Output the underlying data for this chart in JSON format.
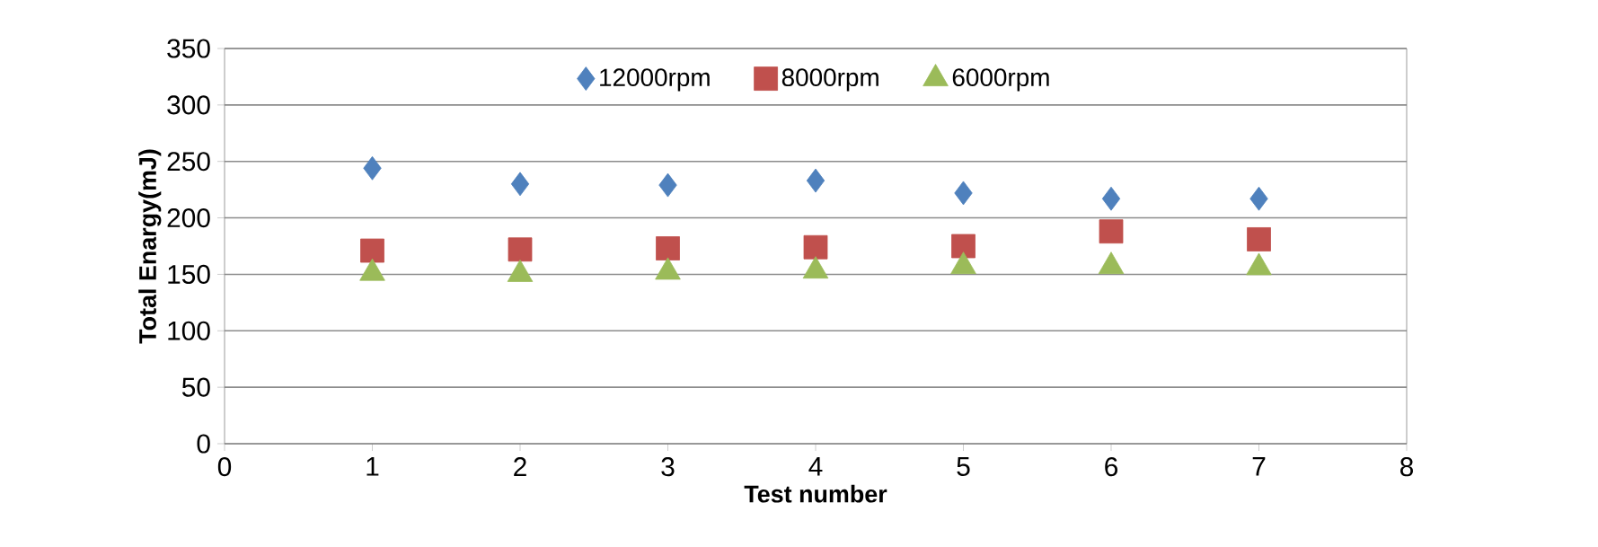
{
  "chart_data": {
    "type": "scatter",
    "xlabel": "Test number",
    "ylabel": "Total Enargy(mJ)",
    "x": [
      1,
      2,
      3,
      4,
      5,
      6,
      7
    ],
    "series": [
      {
        "name": "12000rpm",
        "color": "#4f81bd",
        "marker": "diamond",
        "values": [
          244,
          230,
          229,
          233,
          222,
          217,
          217
        ]
      },
      {
        "name": "8000rpm",
        "color": "#c0504d",
        "marker": "square",
        "values": [
          171,
          172,
          173,
          174,
          175,
          188,
          181
        ]
      },
      {
        "name": "6000rpm",
        "color": "#9bbb59",
        "marker": "triangle",
        "values": [
          151,
          150,
          152,
          153,
          157,
          157,
          156
        ]
      }
    ],
    "xlim": [
      0,
      8
    ],
    "xticks": [
      0,
      1,
      2,
      3,
      4,
      5,
      6,
      7,
      8
    ],
    "ylim": [
      0,
      350
    ],
    "yticks": [
      0,
      50,
      100,
      150,
      200,
      250,
      300,
      350
    ],
    "grid": "y",
    "legend": "top"
  }
}
